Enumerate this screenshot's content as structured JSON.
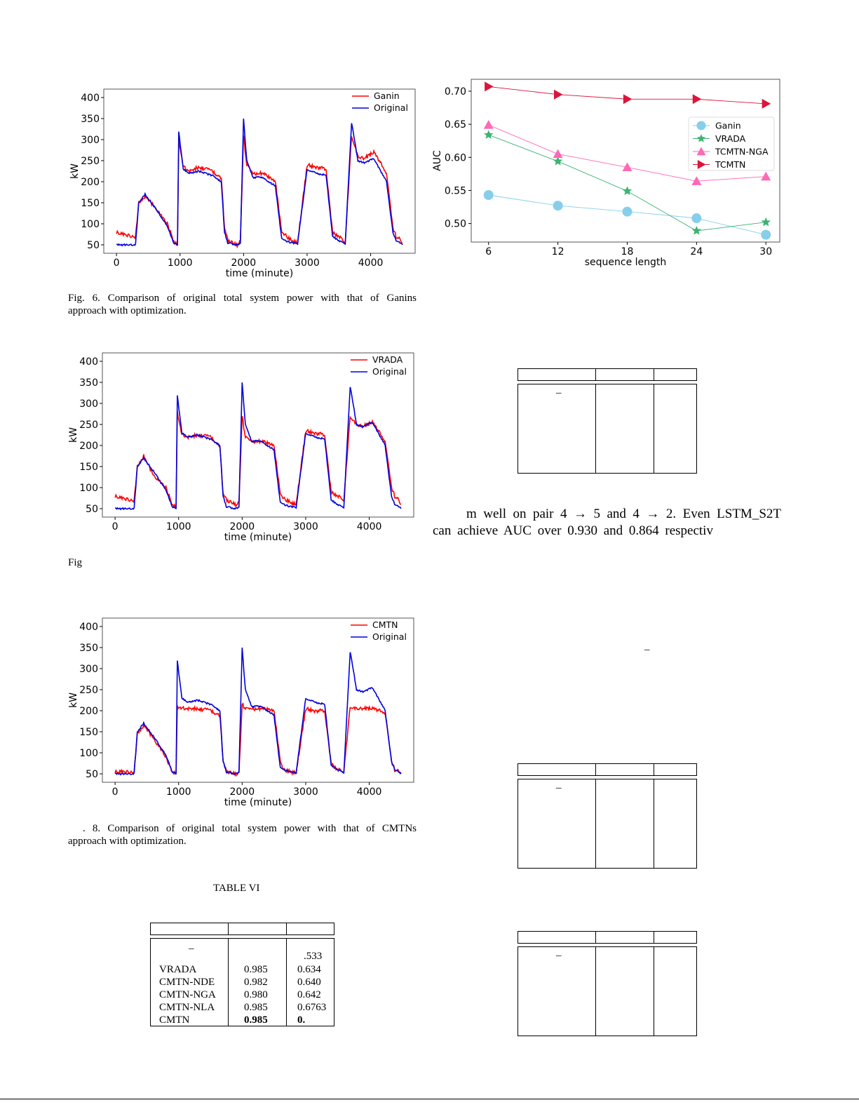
{
  "figures": {
    "fig6": {
      "legend": [
        "Ganin",
        "Original"
      ],
      "ylabel": "kW",
      "xlabel": "time (minute)",
      "yticks": [
        "400",
        "350",
        "300",
        "250",
        "200",
        "150",
        "100",
        "50"
      ],
      "xticks": [
        "0",
        "1000",
        "2000",
        "3000",
        "4000"
      ],
      "caption_line1": "Fig. 6.  Comparison of original total system power with that of Ganins",
      "caption_line2": "approach with optimization."
    },
    "fig7": {
      "legend": [
        "VRADA",
        "Original"
      ],
      "ylabel": "kW",
      "xlabel": "time (minute)",
      "yticks": [
        "400",
        "350",
        "300",
        "250",
        "200",
        "150",
        "100",
        "50"
      ],
      "xticks": [
        "0",
        "1000",
        "2000",
        "3000",
        "4000"
      ],
      "caption_fragment": "Fig"
    },
    "fig8": {
      "legend": [
        "CMTN",
        "Original"
      ],
      "ylabel": "kW",
      "xlabel": "time (minute)",
      "yticks": [
        "400",
        "350",
        "300",
        "250",
        "200",
        "150",
        "100",
        "50"
      ],
      "xticks": [
        "0",
        "1000",
        "2000",
        "3000",
        "4000"
      ],
      "caption_line1": ". 8.  Comparison of original total system power with that of CMTNs",
      "caption_line2": "approach with optimization."
    }
  },
  "chart_data": [
    {
      "type": "line",
      "title": "",
      "xlabel": "time (minute)",
      "ylabel": "kW",
      "xlim": [
        -200,
        4700
      ],
      "ylim": [
        30,
        420
      ],
      "series": [
        {
          "name": "Ganin",
          "color": "#ff0000",
          "x": [
            0,
            100,
            300,
            350,
            450,
            600,
            800,
            900,
            960,
            980,
            1050,
            1150,
            1300,
            1500,
            1650,
            1700,
            1750,
            1900,
            1950,
            2000,
            2050,
            2150,
            2300,
            2500,
            2600,
            2650,
            2750,
            2850,
            3000,
            3150,
            3300,
            3400,
            3500,
            3600,
            3700,
            3800,
            3900,
            4050,
            4250,
            4350,
            4400,
            4460,
            4500
          ],
          "y": [
            80,
            75,
            70,
            150,
            165,
            140,
            100,
            60,
            50,
            300,
            235,
            225,
            235,
            225,
            210,
            90,
            60,
            50,
            60,
            310,
            240,
            220,
            220,
            200,
            80,
            75,
            60,
            55,
            240,
            235,
            230,
            80,
            70,
            55,
            310,
            260,
            255,
            270,
            220,
            90,
            70,
            62,
            55
          ]
        },
        {
          "name": "Original",
          "color": "#0000dd",
          "x": [
            0,
            100,
            300,
            350,
            450,
            600,
            800,
            900,
            960,
            980,
            1050,
            1150,
            1300,
            1500,
            1650,
            1700,
            1750,
            1900,
            1950,
            2000,
            2050,
            2150,
            2300,
            2500,
            2600,
            2650,
            2750,
            2850,
            3000,
            3150,
            3300,
            3400,
            3500,
            3600,
            3700,
            3800,
            3900,
            4050,
            4250,
            4350,
            4400,
            4460,
            4500
          ],
          "y": [
            50,
            50,
            50,
            150,
            170,
            140,
            95,
            55,
            50,
            320,
            230,
            220,
            225,
            215,
            200,
            80,
            55,
            50,
            52,
            350,
            250,
            210,
            210,
            190,
            65,
            60,
            55,
            52,
            230,
            220,
            215,
            70,
            60,
            52,
            340,
            250,
            245,
            255,
            200,
            80,
            60,
            55,
            50
          ]
        }
      ]
    },
    {
      "type": "line",
      "title": "",
      "xlabel": "time (minute)",
      "ylabel": "kW",
      "xlim": [
        -200,
        4700
      ],
      "ylim": [
        30,
        420
      ],
      "series": [
        {
          "name": "VRADA",
          "color": "#ff0000",
          "x": [
            0,
            100,
            300,
            350,
            450,
            600,
            800,
            900,
            960,
            980,
            1050,
            1150,
            1300,
            1500,
            1650,
            1700,
            1750,
            1900,
            1950,
            2000,
            2050,
            2150,
            2300,
            2500,
            2600,
            2650,
            2750,
            2850,
            3000,
            3150,
            3300,
            3400,
            3500,
            3600,
            3700,
            3800,
            3900,
            4050,
            4250,
            4350,
            4400,
            4460,
            4500
          ],
          "y": [
            80,
            75,
            70,
            150,
            175,
            130,
            100,
            60,
            55,
            280,
            225,
            220,
            225,
            220,
            200,
            85,
            70,
            60,
            65,
            270,
            220,
            210,
            210,
            200,
            85,
            75,
            65,
            60,
            235,
            230,
            225,
            90,
            80,
            70,
            270,
            250,
            245,
            255,
            210,
            100,
            80,
            70,
            60
          ]
        },
        {
          "name": "Original",
          "color": "#0000dd",
          "x": [
            0,
            100,
            300,
            350,
            450,
            600,
            800,
            900,
            960,
            980,
            1050,
            1150,
            1300,
            1500,
            1650,
            1700,
            1750,
            1900,
            1950,
            2000,
            2050,
            2150,
            2300,
            2500,
            2600,
            2650,
            2750,
            2850,
            3000,
            3150,
            3300,
            3400,
            3500,
            3600,
            3700,
            3800,
            3900,
            4050,
            4250,
            4350,
            4400,
            4460,
            4500
          ],
          "y": [
            50,
            50,
            50,
            150,
            170,
            140,
            95,
            55,
            50,
            320,
            230,
            220,
            225,
            215,
            200,
            80,
            55,
            50,
            52,
            350,
            250,
            210,
            210,
            190,
            65,
            60,
            55,
            52,
            230,
            220,
            215,
            70,
            60,
            52,
            340,
            250,
            245,
            255,
            200,
            80,
            60,
            55,
            50
          ]
        }
      ]
    },
    {
      "type": "line",
      "title": "",
      "xlabel": "time (minute)",
      "ylabel": "kW",
      "xlim": [
        -200,
        4700
      ],
      "ylim": [
        30,
        420
      ],
      "series": [
        {
          "name": "CMTN",
          "color": "#ff0000",
          "x": [
            0,
            100,
            300,
            350,
            450,
            600,
            800,
            900,
            960,
            980,
            1050,
            1150,
            1300,
            1500,
            1650,
            1700,
            1750,
            1900,
            1950,
            2000,
            2050,
            2150,
            2300,
            2500,
            2600,
            2650,
            2750,
            2850,
            3000,
            3150,
            3300,
            3400,
            3500,
            3600,
            3700,
            3800,
            3900,
            4050,
            4250,
            4350,
            4400,
            4460,
            4500
          ],
          "y": [
            55,
            55,
            55,
            145,
            165,
            135,
            90,
            55,
            52,
            210,
            205,
            205,
            205,
            200,
            190,
            80,
            55,
            50,
            52,
            215,
            205,
            205,
            205,
            200,
            80,
            60,
            55,
            52,
            205,
            200,
            200,
            75,
            60,
            55,
            210,
            205,
            205,
            205,
            195,
            80,
            60,
            55,
            52
          ]
        },
        {
          "name": "Original",
          "color": "#0000dd",
          "x": [
            0,
            100,
            300,
            350,
            450,
            600,
            800,
            900,
            960,
            980,
            1050,
            1150,
            1300,
            1500,
            1650,
            1700,
            1750,
            1900,
            1950,
            2000,
            2050,
            2150,
            2300,
            2500,
            2600,
            2650,
            2750,
            2850,
            3000,
            3150,
            3300,
            3400,
            3500,
            3600,
            3700,
            3800,
            3900,
            4050,
            4250,
            4350,
            4400,
            4460,
            4500
          ],
          "y": [
            50,
            50,
            50,
            150,
            170,
            140,
            95,
            55,
            50,
            320,
            230,
            220,
            225,
            215,
            200,
            80,
            55,
            50,
            52,
            350,
            250,
            210,
            210,
            190,
            65,
            60,
            55,
            52,
            230,
            220,
            215,
            70,
            60,
            52,
            340,
            250,
            245,
            255,
            200,
            80,
            60,
            55,
            50
          ]
        }
      ]
    },
    {
      "type": "line",
      "title": "",
      "xlabel": "sequence length",
      "ylabel": "AUC",
      "xlim": [
        4.5,
        31.2
      ],
      "ylim": [
        0.472,
        0.718
      ],
      "xticks": [
        "6",
        "12",
        "18",
        "24",
        "30"
      ],
      "yticks": [
        "0.70",
        "0.65",
        "0.60",
        "0.55",
        "0.50"
      ],
      "categories": [
        6,
        12,
        18,
        24,
        30
      ],
      "series": [
        {
          "name": "Ganin",
          "color": "#87ceeb",
          "marker": "circle",
          "values": [
            0.543,
            0.527,
            0.518,
            0.508,
            0.483
          ]
        },
        {
          "name": "VRADA",
          "color": "#3cb371",
          "marker": "star",
          "values": [
            0.634,
            0.594,
            0.549,
            0.489,
            0.502
          ]
        },
        {
          "name": "TCMTN-NGA",
          "color": "#ff69b4",
          "marker": "triangle-up",
          "values": [
            0.649,
            0.605,
            0.585,
            0.564,
            0.571
          ]
        },
        {
          "name": "TCMTN",
          "color": "#dc143c",
          "marker": "triangle-right",
          "values": [
            0.707,
            0.695,
            0.688,
            0.688,
            0.681
          ]
        }
      ]
    }
  ],
  "paragraph": {
    "line1": "m well on pair 4 → 5 and 4 → 2. Even LSTM_S2T",
    "line2": "can achieve AUC over 0.930 and 0.864 respectiv"
  },
  "table6": {
    "title": "TABLE VI",
    "dash": "–",
    "partial_value": ".533",
    "rows": [
      {
        "name": "VRADA",
        "v1": "0.985",
        "v2": "0.634"
      },
      {
        "name": "CMTN-NDE",
        "v1": "0.982",
        "v2": "0.640"
      },
      {
        "name": "CMTN-NGA",
        "v1": "0.980",
        "v2": "0.642"
      },
      {
        "name": "CMTN-NLA",
        "v1": "0.985",
        "v2": "0.6763"
      },
      {
        "name": "CMTN",
        "v1": "0.985",
        "v2": "0."
      }
    ]
  },
  "fragments": {
    "dash": "–"
  }
}
